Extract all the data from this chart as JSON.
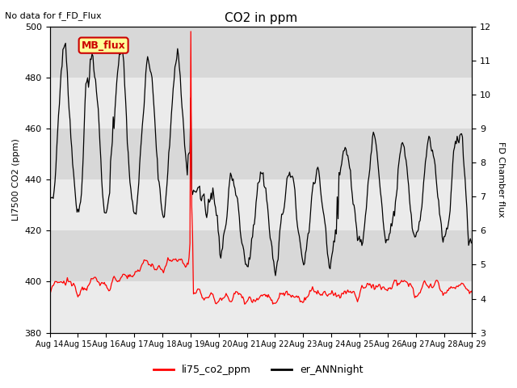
{
  "title": "CO2 in ppm",
  "top_left_text": "No data for f_FD_Flux",
  "ylabel_left": "LI7500 CO2 (ppm)",
  "ylabel_right": "FD Chamber flux",
  "ylim_left": [
    380,
    500
  ],
  "ylim_right": [
    3.0,
    12.0
  ],
  "yticks_left": [
    380,
    400,
    420,
    440,
    460,
    480,
    500
  ],
  "yticks_right": [
    3.0,
    4.0,
    5.0,
    6.0,
    7.0,
    8.0,
    9.0,
    10.0,
    11.0,
    12.0
  ],
  "xtick_labels": [
    "Aug 14",
    "Aug 15",
    "Aug 16",
    "Aug 17",
    "Aug 18",
    "Aug 19",
    "Aug 20",
    "Aug 21",
    "Aug 22",
    "Aug 23",
    "Aug 24",
    "Aug 25",
    "Aug 26",
    "Aug 27",
    "Aug 28",
    "Aug 29"
  ],
  "legend": [
    {
      "label": "li75_co2_ppm",
      "color": "red"
    },
    {
      "label": "er_ANNnight",
      "color": "black"
    }
  ],
  "box_label": "MB_flux",
  "box_color": "#ffff99",
  "box_border": "#cc0000",
  "background_color": "#e8e8e8",
  "band_color_light": "#ebebeb",
  "band_color_dark": "#d8d8d8",
  "figsize": [
    6.4,
    4.8
  ],
  "dpi": 100
}
